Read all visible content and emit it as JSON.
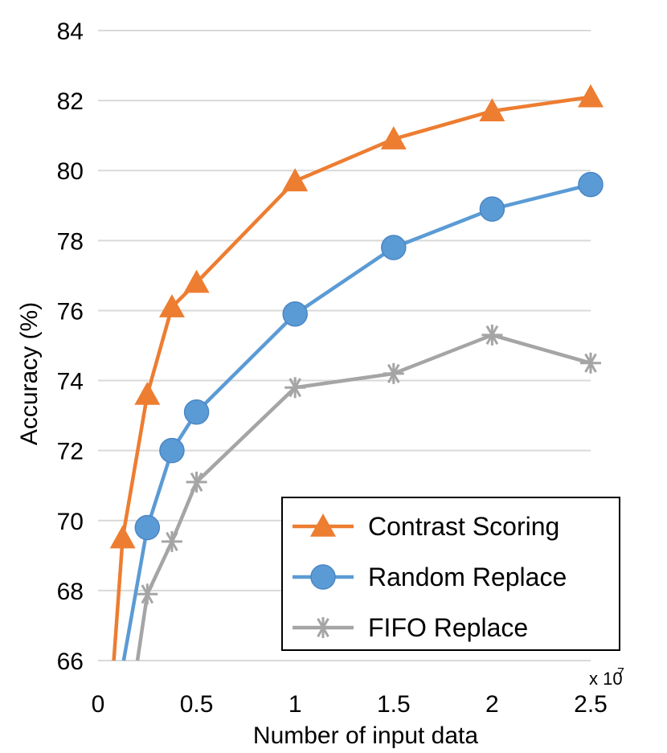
{
  "chart_data": {
    "type": "line",
    "title": "",
    "xlabel": "Number of input data",
    "ylabel": "Accuracy (%)",
    "x_multiplier_label": "x 10",
    "x_multiplier_exponent": "7",
    "xlim": [
      0,
      2.5
    ],
    "ylim": [
      66,
      84
    ],
    "xticks": [
      0,
      0.5,
      1,
      1.5,
      2,
      2.5
    ],
    "xtick_labels": [
      "0",
      "0.5",
      "1",
      "1.5",
      "2",
      "2.5"
    ],
    "yticks": [
      66,
      68,
      70,
      72,
      74,
      76,
      78,
      80,
      82,
      84
    ],
    "ytick_labels": [
      "66",
      "68",
      "70",
      "72",
      "74",
      "76",
      "78",
      "80",
      "82",
      "84"
    ],
    "grid": "horizontal",
    "legend_position": "bottom-right",
    "series": [
      {
        "name": "Contrast Scoring",
        "color": "#ED7D31",
        "marker": "triangle",
        "x": [
          0.125,
          0.25,
          0.375,
          0.5,
          1.0,
          1.5,
          2.0,
          2.5
        ],
        "y": [
          69.5,
          73.6,
          76.1,
          76.8,
          79.7,
          80.9,
          81.7,
          82.1
        ],
        "line_start": [
          0.08,
          66.0
        ]
      },
      {
        "name": "Random Replace",
        "color": "#5B9BD5",
        "marker": "circle",
        "x": [
          0.25,
          0.375,
          0.5,
          1.0,
          1.5,
          2.0,
          2.5
        ],
        "y": [
          69.8,
          72.0,
          73.1,
          75.9,
          77.8,
          78.9,
          79.6
        ],
        "line_start": [
          0.13,
          66.0
        ]
      },
      {
        "name": "FIFO Replace",
        "color": "#A5A5A5",
        "marker": "star",
        "x": [
          0.25,
          0.375,
          0.5,
          1.0,
          1.5,
          2.0,
          2.5
        ],
        "y": [
          67.9,
          69.4,
          71.1,
          73.8,
          74.2,
          75.3,
          74.5
        ],
        "line_start": [
          0.2,
          66.0
        ]
      }
    ]
  }
}
